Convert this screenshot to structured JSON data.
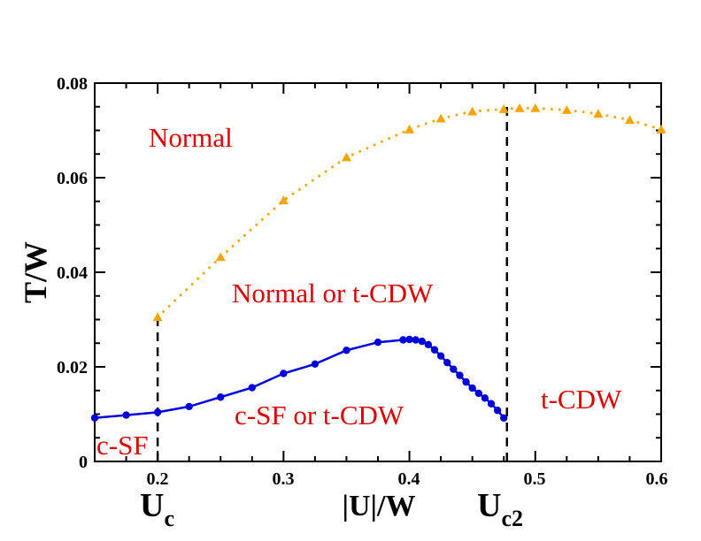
{
  "chart_data": {
    "type": "scatter",
    "xlabel": "|U|/W",
    "ylabel": "T/W",
    "xlim": [
      0.15,
      0.6
    ],
    "ylim": [
      0,
      0.08
    ],
    "x_ticks": [
      "0.2",
      "0.3",
      "0.4",
      "0.5",
      "0.6"
    ],
    "y_ticks": [
      "0",
      "0.02",
      "0.04",
      "0.06",
      "0.08"
    ],
    "series": [
      {
        "name": "normal-boundary",
        "color": "#f5a500",
        "marker": "triangle",
        "linestyle": "dotted",
        "x": [
          0.2,
          0.25,
          0.3,
          0.35,
          0.4,
          0.425,
          0.45,
          0.475,
          0.4875,
          0.5,
          0.525,
          0.55,
          0.575,
          0.6
        ],
        "y": [
          0.0305,
          0.0432,
          0.0552,
          0.0643,
          0.0702,
          0.0725,
          0.074,
          0.0745,
          0.0747,
          0.0747,
          0.0743,
          0.0735,
          0.0722,
          0.0702
        ]
      },
      {
        "name": "csf-boundary",
        "color": "#0000dd",
        "marker": "circle",
        "linestyle": "solid",
        "x": [
          0.15,
          0.175,
          0.2,
          0.225,
          0.25,
          0.275,
          0.3,
          0.325,
          0.35,
          0.375,
          0.395,
          0.4,
          0.405,
          0.41,
          0.415,
          0.42,
          0.425,
          0.43,
          0.435,
          0.44,
          0.445,
          0.45,
          0.455,
          0.46,
          0.465,
          0.47,
          0.475
        ],
        "y": [
          0.0092,
          0.0098,
          0.0104,
          0.0116,
          0.0136,
          0.0156,
          0.0186,
          0.0206,
          0.0235,
          0.0252,
          0.0257,
          0.0258,
          0.0257,
          0.0254,
          0.0247,
          0.0236,
          0.0223,
          0.0209,
          0.0195,
          0.0182,
          0.0168,
          0.0155,
          0.0144,
          0.0134,
          0.0122,
          0.0108,
          0.0092
        ]
      }
    ],
    "vertical_lines": [
      {
        "name": "uc",
        "x": 0.2,
        "y_from": 0,
        "y_to": 0.0305
      },
      {
        "name": "uc2",
        "x": 0.4775,
        "y_from": 0,
        "y_to": 0.0752
      }
    ],
    "axis_markers": {
      "uc": {
        "main": "U",
        "sub": "c"
      },
      "uc2": {
        "main": "U",
        "sub": "c2"
      }
    },
    "annotations": {
      "normal": "Normal",
      "normal_or_tcdw": "Normal or t-CDW",
      "csf_or_tcdw": "c-SF or t-CDW",
      "tcdw": "t-CDW",
      "csf": "c-SF"
    },
    "annotation_color": "#dd0000"
  }
}
